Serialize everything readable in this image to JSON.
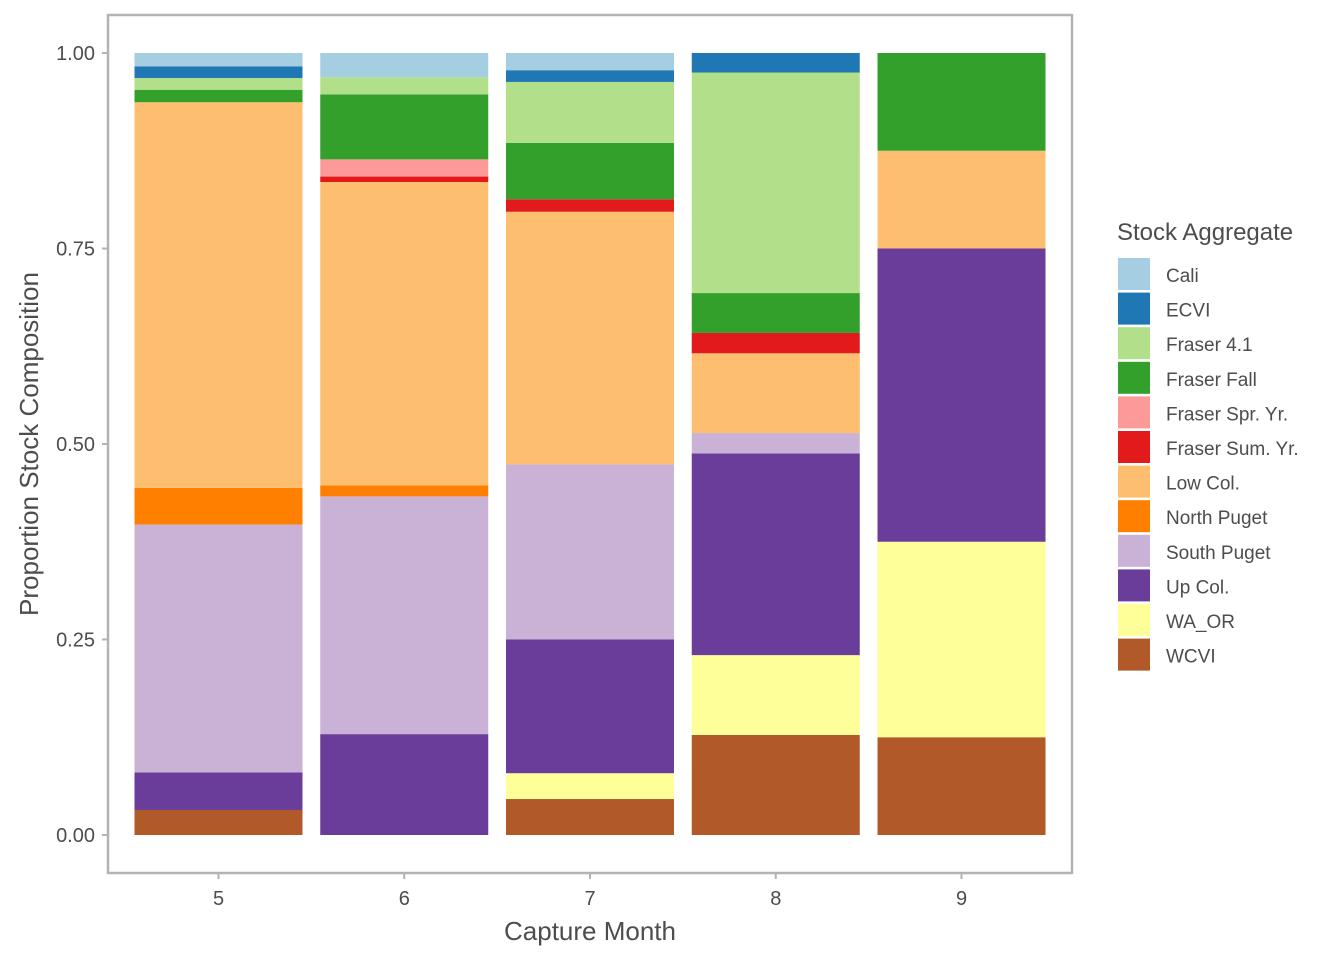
{
  "chart_data": {
    "type": "bar",
    "stacked": true,
    "xlabel": "Capture Month",
    "ylabel": "Proportion Stock Composition",
    "categories": [
      "5",
      "6",
      "7",
      "8",
      "9"
    ],
    "ylim": [
      0,
      1
    ],
    "yticks": [
      0,
      0.25,
      0.5,
      0.75,
      1
    ],
    "ytick_labels": [
      "0.00",
      "0.25",
      "0.50",
      "0.75",
      "1.00"
    ],
    "grid": false,
    "legend": {
      "title": "Stock Aggregate",
      "position": "right"
    },
    "series": [
      {
        "name": "WCVI",
        "color": "#B15928",
        "values": [
          0.032,
          0.0,
          0.046,
          0.128,
          0.125
        ]
      },
      {
        "name": "WA_OR",
        "color": "#FFFF99",
        "values": [
          0.0,
          0.0,
          0.033,
          0.102,
          0.25
        ]
      },
      {
        "name": "Up Col.",
        "color": "#6A3D9A",
        "values": [
          0.048,
          0.129,
          0.171,
          0.258,
          0.375
        ]
      },
      {
        "name": "South Puget",
        "color": "#CAB2D6",
        "values": [
          0.317,
          0.304,
          0.224,
          0.026,
          0.0
        ]
      },
      {
        "name": "North Puget",
        "color": "#FF7F00",
        "values": [
          0.047,
          0.014,
          0.0,
          0.0,
          0.0
        ]
      },
      {
        "name": "Low Col.",
        "color": "#FDBF6F",
        "values": [
          0.493,
          0.388,
          0.323,
          0.102,
          0.125
        ]
      },
      {
        "name": "Fraser Sum. Yr.",
        "color": "#E31A1C",
        "values": [
          0.0,
          0.007,
          0.016,
          0.026,
          0.0
        ]
      },
      {
        "name": "Fraser Spr. Yr.",
        "color": "#FB9A99",
        "values": [
          0.0,
          0.022,
          0.0,
          0.0,
          0.0
        ]
      },
      {
        "name": "Fraser Fall",
        "color": "#33A02C",
        "values": [
          0.016,
          0.083,
          0.072,
          0.051,
          0.125
        ]
      },
      {
        "name": "Fraser 4.1",
        "color": "#B2DF8A",
        "values": [
          0.015,
          0.022,
          0.078,
          0.282,
          0.0
        ]
      },
      {
        "name": "ECVI",
        "color": "#1F78B4",
        "values": [
          0.015,
          0.0,
          0.015,
          0.025,
          0.0
        ]
      },
      {
        "name": "Cali",
        "color": "#A6CEE3",
        "values": [
          0.017,
          0.031,
          0.022,
          0.0,
          0.0
        ]
      }
    ],
    "legend_order": [
      "Cali",
      "ECVI",
      "Fraser 4.1",
      "Fraser Fall",
      "Fraser Spr. Yr.",
      "Fraser Sum. Yr.",
      "Low Col.",
      "North Puget",
      "South Puget",
      "Up Col.",
      "WA_OR",
      "WCVI"
    ]
  }
}
